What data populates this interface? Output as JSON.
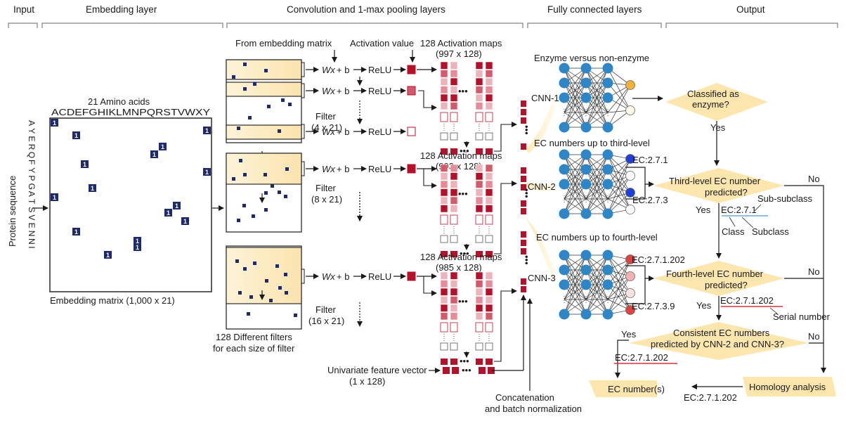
{
  "sections": {
    "input": "Input",
    "embedding": "Embedding layer",
    "conv": "Convolution and 1-max pooling layers",
    "fc": "Fully connected layers",
    "output": "Output"
  },
  "input": {
    "label": "Protein sequence",
    "sequence": [
      "A",
      "Y",
      "E",
      "R",
      "Q",
      "F",
      "Y",
      "P",
      "G",
      "A",
      "T",
      "S",
      "V",
      "E",
      "N",
      "N",
      "I"
    ]
  },
  "embedding": {
    "aa_title": "21 Amino acids",
    "alphabet": "ACDEFGHIKLMNPQRSTVWXY",
    "matrix_label": "Embedding matrix (1,000 x 21)",
    "cell_text": "1"
  },
  "conv": {
    "from_label": "From embedding matrix",
    "activation_value": "Activation value",
    "wx": "Wx",
    "plus_b": " + b",
    "relu": "ReLU",
    "filters": [
      {
        "name": "Filter",
        "size": "(4 x 21)",
        "maps_title": "128 Activation maps",
        "maps_size": "(997 x 128)"
      },
      {
        "name": "Filter",
        "size": "(8 x 21)",
        "maps_title": "128 Activation maps",
        "maps_size": "(993 x 128)"
      },
      {
        "name": "Filter",
        "size": "(16 x 21)",
        "maps_title": "128 Activation maps",
        "maps_size": "(985 x 128)"
      }
    ],
    "diff_filters_1": "128 Different filters",
    "diff_filters_2": "for each size of filter",
    "univariate_1": "Univariate feature vector",
    "univariate_2": "(1 x 128)",
    "concat_1": "Concatenation",
    "concat_2": "and batch normalization",
    "dots": "•••"
  },
  "fc": {
    "cnn1_title": "Enzyme versus non-enzyme",
    "cnn2_title": "EC numbers up to third-level",
    "cnn3_title": "EC numbers up to fourth-level",
    "cnn1": "CNN-1",
    "cnn2": "CNN-2",
    "cnn3": "CNN-3",
    "cnn2_out_top": "EC:2.7.1",
    "cnn2_out_bottom": "EC:2.7.3",
    "cnn3_out_top": "EC:2.7.1.202",
    "cnn3_out_bottom": "EC:2.7.3.9"
  },
  "output": {
    "q1_line1": "Classified as",
    "q1_line2": "enzyme?",
    "yes": "Yes",
    "no": "No",
    "q2_line1": "Third-level EC number",
    "q2_line2": "predicted?",
    "ec3": "EC:2.7.1",
    "sub_subclass": "Sub-subclass",
    "class": "Class",
    "subclass": "Subclass",
    "q3_line1": "Fourth-level EC number",
    "q3_line2": "predicted?",
    "ec4": "EC:2.7.1.202",
    "serial": "Serial number",
    "q4_line1": "Consistent EC numbers",
    "q4_line2": "predicted by CNN-2 and CNN-3?",
    "ec_final": "EC:2.7.1.202",
    "ec_numbers": "EC number(s)",
    "homology": "Homology analysis",
    "ec_homology": "EC:2.7.1.202"
  },
  "colors": {
    "navy": "#1f2a6b",
    "cream": "#fdeec4",
    "red_dark": "#b5112b",
    "red_mid": "#d35a6a",
    "red_light": "#ecb3bb",
    "node_blue": "#2e86c7",
    "orange": "#f1b13b",
    "decision": "#fde6ae"
  }
}
